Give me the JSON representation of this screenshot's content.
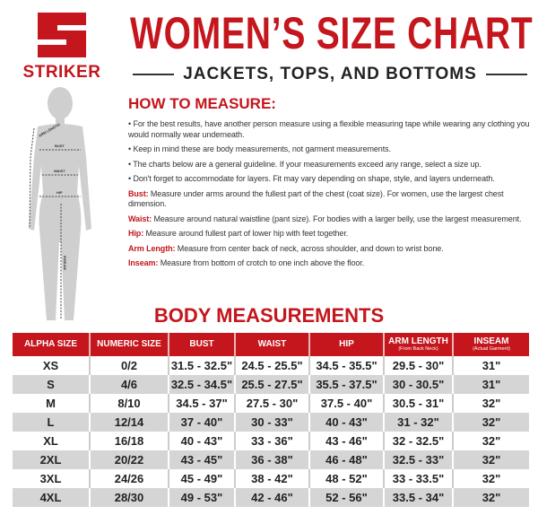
{
  "brand": {
    "name": "STRIKER",
    "color": "#c4161c"
  },
  "header": {
    "title": "WOMEN’S SIZE CHART",
    "subtitle": "JACKETS, TOPS, AND BOTTOMS"
  },
  "figure": {
    "labels": {
      "arm": "ARM LENGTH",
      "bust": "BUST",
      "waist": "WAIST",
      "hip": "HIP",
      "inseam": "INSEAM"
    }
  },
  "how_to": {
    "title": "HOW TO MEASURE:",
    "bullets": [
      "• For the best results, have another person measure using a flexible measuring tape while wearing any clothing you would normally wear underneath.",
      "• Keep in mind these are body measurements, not garment measurements.",
      "• The charts below are a general guideline. If your measurements exceed any range, select a size up.",
      "• Don't forget to accommodate for layers. Fit may vary depending on shape, style, and layers underneath."
    ],
    "definitions": [
      {
        "term": "Bust:",
        "text": " Measure under arms around the fullest part of the chest (coat size).  For women, use the largest chest dimension."
      },
      {
        "term": "Waist:",
        "text": " Measure around natural waistline (pant size). For bodies with a larger belly, use the largest measurement."
      },
      {
        "term": "Hip:",
        "text": " Measure around fullest part of lower hip with feet together."
      },
      {
        "term": "Arm Length:",
        "text": " Measure from center back of neck, across shoulder, and down to wrist bone."
      },
      {
        "term": "Inseam:",
        "text": " Measure from bottom of crotch to one inch above the floor."
      }
    ]
  },
  "table": {
    "title": "BODY MEASUREMENTS",
    "headers": [
      {
        "label": "ALPHA SIZE"
      },
      {
        "label": "NUMERIC SIZE"
      },
      {
        "label": "BUST"
      },
      {
        "label": "WAIST"
      },
      {
        "label": "HIP"
      },
      {
        "label": "ARM LENGTH",
        "sub": "(From Back Neck)"
      },
      {
        "label": "INSEAM",
        "sub": "(Actual Garment)"
      }
    ],
    "rows": [
      [
        "XS",
        "0/2",
        "31.5 - 32.5\"",
        "24.5 - 25.5\"",
        "34.5 - 35.5\"",
        "29.5 - 30\"",
        "31\""
      ],
      [
        "S",
        "4/6",
        "32.5 - 34.5\"",
        "25.5 - 27.5\"",
        "35.5 - 37.5\"",
        "30 - 30.5\"",
        "31\""
      ],
      [
        "M",
        "8/10",
        "34.5 - 37\"",
        "27.5 - 30\"",
        "37.5 - 40\"",
        "30.5 - 31\"",
        "32\""
      ],
      [
        "L",
        "12/14",
        "37 - 40\"",
        "30 - 33\"",
        "40 - 43\"",
        "31 - 32\"",
        "32\""
      ],
      [
        "XL",
        "16/18",
        "40 - 43\"",
        "33 - 36\"",
        "43 - 46\"",
        "32 - 32.5\"",
        "32\""
      ],
      [
        "2XL",
        "20/22",
        "43 - 45\"",
        "36 - 38\"",
        "46 - 48\"",
        "32.5 - 33\"",
        "32\""
      ],
      [
        "3XL",
        "24/26",
        "45 - 49\"",
        "38 - 42\"",
        "48 - 52\"",
        "33 - 33.5\"",
        "32\""
      ],
      [
        "4XL",
        "28/30",
        "49 - 53\"",
        "42 - 46\"",
        "52 - 56\"",
        "33.5 - 34\"",
        "32\""
      ]
    ]
  }
}
